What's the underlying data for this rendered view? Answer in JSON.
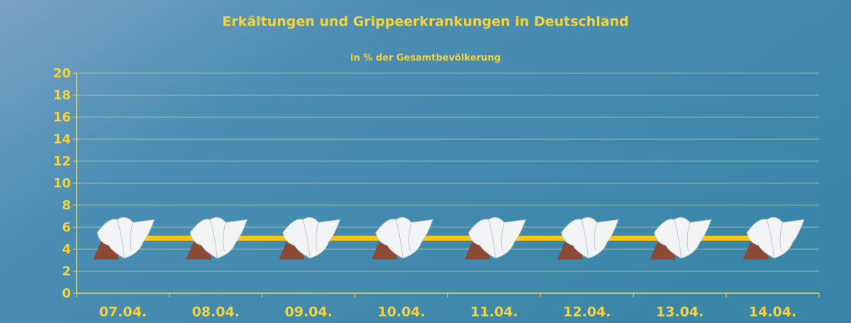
{
  "chart_data": {
    "type": "line",
    "title": "Erkältungen und Grippeerkrankungen in Deutschland",
    "subtitle": "in % der Gesamtbevölkerung",
    "categories": [
      "07.04.",
      "08.04.",
      "09.04.",
      "10.04.",
      "11.04.",
      "12.04.",
      "13.04.",
      "14.04."
    ],
    "values": [
      5,
      5,
      5,
      5,
      5,
      5,
      5,
      5
    ],
    "color": "#f5c518",
    "ylim": [
      0,
      20
    ],
    "yticks": [
      0,
      2,
      4,
      6,
      8,
      10,
      12,
      14,
      16,
      18,
      20
    ],
    "grid": true
  }
}
